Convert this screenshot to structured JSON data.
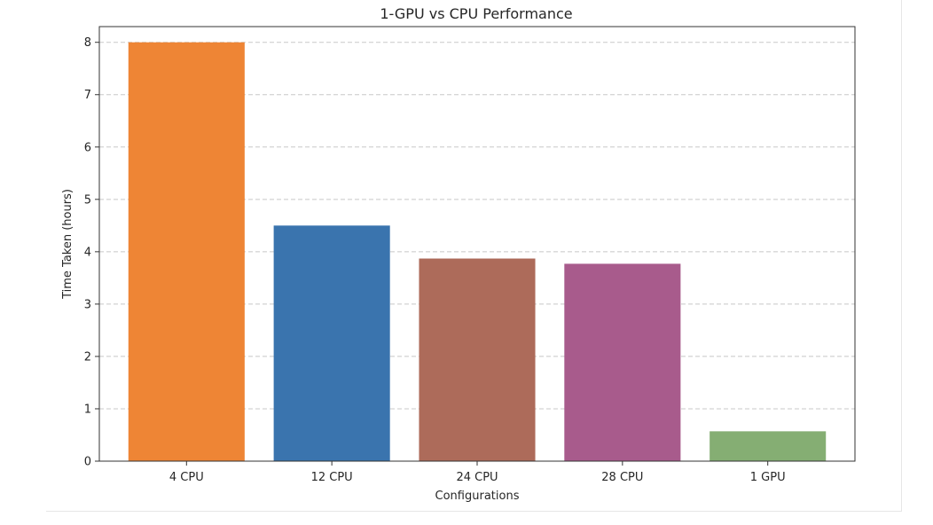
{
  "chart_data": {
    "type": "bar",
    "title": "1-GPU vs CPU Performance",
    "xlabel": "Configurations",
    "ylabel": "Time Taken (hours)",
    "categories": [
      "4 CPU",
      "12 CPU",
      "24 CPU",
      "28 CPU",
      "1 GPU"
    ],
    "values": [
      8.0,
      4.5,
      3.87,
      3.77,
      0.57
    ],
    "colors": [
      "#ee8535",
      "#3a74ae",
      "#ad6b5a",
      "#a85b8c",
      "#85ae73"
    ],
    "ylim": [
      0,
      8.3
    ],
    "yticks": [
      0,
      1,
      2,
      3,
      4,
      5,
      6,
      7,
      8
    ],
    "grid": "y-dashed",
    "legend": "none"
  }
}
